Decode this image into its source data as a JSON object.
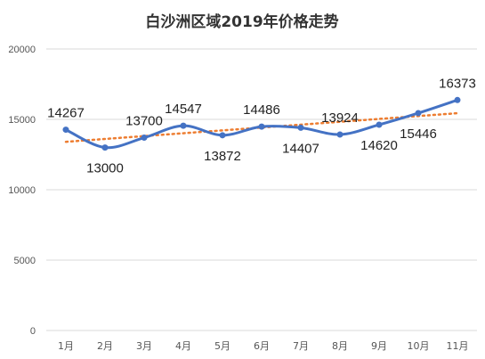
{
  "chart_data": {
    "type": "line",
    "title": "白沙洲区域2019年价格走势",
    "categories": [
      "1月",
      "2月",
      "3月",
      "4月",
      "5月",
      "6月",
      "7月",
      "8月",
      "9月",
      "10月",
      "11月"
    ],
    "values": [
      14267,
      13000,
      13700,
      14547,
      13872,
      14486,
      14407,
      13924,
      14620,
      15446,
      16373
    ],
    "data_labels": [
      "14267",
      "13000",
      "13700",
      "14547",
      "13872",
      "14486",
      "14407",
      "13924",
      "14620",
      "15446",
      "16373"
    ],
    "y_ticks": [
      "0",
      "5000",
      "10000",
      "15000",
      "20000"
    ],
    "ylim": [
      0,
      20000
    ],
    "grid": true,
    "trendline": "linear",
    "colors": {
      "series": "#4472C4",
      "trendline": "#ED7D31"
    }
  }
}
